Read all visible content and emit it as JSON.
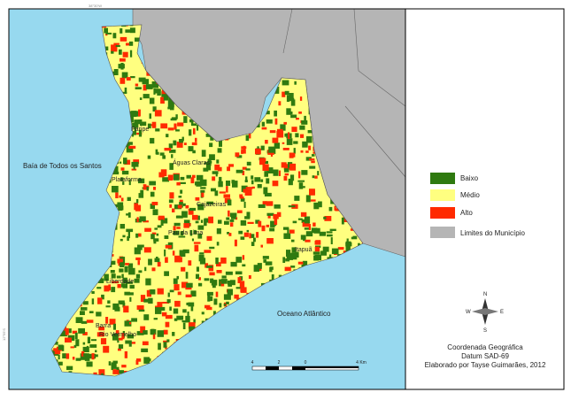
{
  "map": {
    "places": {
      "bay": "Baía de Todos os Santos",
      "ocean": "Oceano Atlântico",
      "towns": [
        "Paripe",
        "Plataforma",
        "Águas Claras",
        "Cajazeiras",
        "Pau da Lima",
        "Itapuã",
        "Liberdade",
        "Barra",
        "Rio Vermelho"
      ]
    },
    "legend": [
      "Baixo",
      "Médio",
      "Alto",
      "Limites do Município"
    ],
    "credits": [
      "Coordenada Geográfica",
      "Datum SAD-69",
      "Elaborado por Tayse Guimarães, 2012"
    ],
    "scale": [
      "4",
      "2",
      "0",
      "4 Km"
    ],
    "compass": [
      "N",
      "S",
      "E",
      "W"
    ],
    "graticule": [
      "38°30'W",
      "12°55'S"
    ]
  }
}
